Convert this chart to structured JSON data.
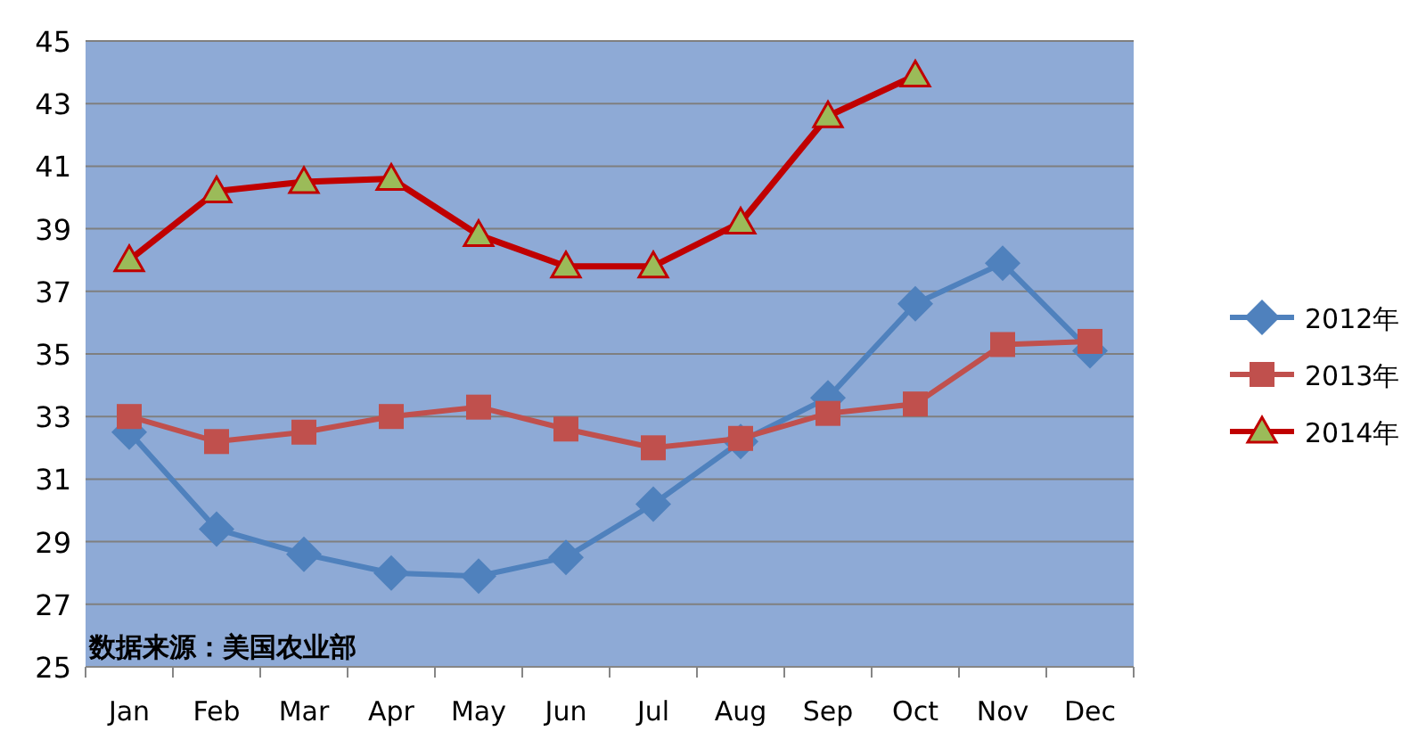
{
  "chart_data": {
    "type": "line",
    "categories": [
      "Jan",
      "Feb",
      "Mar",
      "Apr",
      "May",
      "Jun",
      "Jul",
      "Aug",
      "Sep",
      "Oct",
      "Nov",
      "Dec"
    ],
    "series": [
      {
        "name": "2012年",
        "color": "#4f81bd",
        "marker": "diamond",
        "values": [
          32.5,
          29.4,
          28.6,
          28.0,
          27.9,
          28.5,
          30.2,
          32.2,
          33.6,
          36.6,
          37.9,
          35.1
        ]
      },
      {
        "name": "2013年",
        "color": "#c0504d",
        "marker": "square",
        "values": [
          33.0,
          32.2,
          32.5,
          33.0,
          33.3,
          32.6,
          32.0,
          32.3,
          33.1,
          33.4,
          35.3,
          35.4
        ]
      },
      {
        "name": "2014年",
        "color": "#c00000",
        "marker": "triangle",
        "values": [
          38.0,
          40.2,
          40.5,
          40.6,
          38.8,
          37.8,
          37.8,
          39.2,
          42.6,
          43.9,
          null,
          null
        ]
      }
    ],
    "ylim": [
      25,
      45
    ],
    "yticks": [
      25,
      27,
      29,
      31,
      33,
      35,
      37,
      39,
      41,
      43,
      45
    ],
    "grid": "y",
    "legend": "right",
    "annotations": [
      "数据来源：美国农业部"
    ]
  }
}
